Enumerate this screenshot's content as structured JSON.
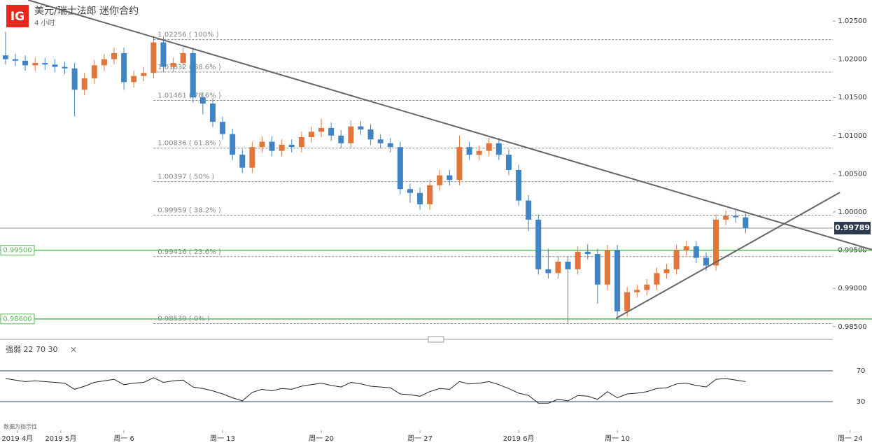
{
  "header": {
    "logo": "IG",
    "title": "美元/瑞士法郎 迷你合约",
    "interval": "4 小时"
  },
  "footer_note": "数据为指示性",
  "chart_data": [
    {
      "type": "candlestick",
      "x": [
        -6,
        -5.5,
        -5,
        -4.5,
        -4,
        -3.5,
        -3,
        -2.5,
        -2,
        -1.5,
        -1,
        -0.5,
        0,
        0.5,
        1,
        1.5,
        2,
        2.5,
        3,
        3.5,
        4,
        4.5,
        5,
        5.5,
        6,
        6.5,
        7,
        7.5,
        8,
        8.5,
        9,
        9.5,
        10,
        10.5,
        11,
        11.5,
        12,
        12.5,
        13,
        13.5,
        14,
        14.5,
        15,
        15.5,
        16,
        16.5,
        17,
        17.5,
        18,
        18.5,
        19,
        19.5,
        20,
        20.5,
        21,
        21.5,
        22,
        22.5,
        23,
        23.5,
        24,
        24.5,
        25,
        25.5,
        26,
        26.5,
        27,
        27.5,
        28,
        28.5,
        29,
        29.5,
        30,
        30.5,
        31,
        31.5
      ],
      "open": [
        1.0205,
        1.02,
        1.0198,
        1.0192,
        1.0195,
        1.0193,
        1.019,
        1.0188,
        1.016,
        1.0175,
        1.0192,
        1.02,
        1.0208,
        1.017,
        1.0178,
        1.0182,
        1.0222,
        1.019,
        1.0195,
        1.0208,
        1.015,
        1.0142,
        1.0118,
        1.0102,
        1.0075,
        1.0058,
        1.0085,
        1.0092,
        1.008,
        1.0088,
        1.0085,
        1.0098,
        1.0105,
        1.011,
        1.01,
        1.009,
        1.0112,
        1.0108,
        1.0095,
        1.009,
        1.0085,
        1.003,
        1.0025,
        1.001,
        1.0035,
        1.0048,
        1.0042,
        1.0085,
        1.0075,
        1.008,
        1.009,
        1.0075,
        1.0055,
        1.0015,
        0.999,
        0.9925,
        0.992,
        0.9935,
        0.9925,
        0.9948,
        0.9945,
        0.9905,
        0.995,
        0.987,
        0.9895,
        0.9898,
        0.9905,
        0.992,
        0.9925,
        0.995,
        0.9955,
        0.994,
        0.993,
        0.999,
        0.9995,
        0.9993
      ],
      "high": [
        1.0236,
        1.0207,
        1.0205,
        1.0202,
        1.0202,
        1.02,
        1.0197,
        1.0195,
        1.0182,
        1.0199,
        1.0207,
        1.0215,
        1.0215,
        1.0185,
        1.019,
        1.023,
        1.0229,
        1.0202,
        1.0215,
        1.0215,
        1.0157,
        1.0149,
        1.0125,
        1.0109,
        1.0082,
        1.0092,
        1.0099,
        1.0099,
        1.0095,
        1.0095,
        1.0105,
        1.0112,
        1.0122,
        1.0117,
        1.0107,
        1.012,
        1.0119,
        1.0115,
        1.0102,
        1.0097,
        1.0092,
        1.0037,
        1.0032,
        1.0042,
        1.0055,
        1.0055,
        1.01,
        1.0092,
        1.0087,
        1.0097,
        1.0097,
        1.0082,
        1.0062,
        1.0022,
        0.9997,
        0.9952,
        0.9942,
        0.9942,
        0.9955,
        0.9958,
        0.9952,
        0.9957,
        0.9957,
        0.9902,
        0.9905,
        0.9912,
        0.9927,
        0.9932,
        0.9957,
        0.9962,
        0.9962,
        0.9947,
        0.9997,
        1.0002,
        1.0002,
        0.9998
      ],
      "low": [
        1.0193,
        1.0191,
        1.0185,
        1.0185,
        1.0186,
        1.0183,
        1.0181,
        1.0125,
        1.0153,
        1.0168,
        1.0185,
        1.0193,
        1.016,
        1.0163,
        1.0171,
        1.0175,
        1.0183,
        1.0183,
        1.0188,
        1.0143,
        1.0128,
        1.0111,
        1.0095,
        1.0068,
        1.0051,
        1.0051,
        1.0078,
        1.0073,
        1.0073,
        1.0078,
        1.0078,
        1.0091,
        1.0098,
        1.0093,
        1.0083,
        1.0083,
        1.0101,
        1.0088,
        1.0083,
        1.0078,
        1.0023,
        1.0012,
        1.0003,
        1.0003,
        1.0028,
        1.0035,
        1.0035,
        1.0068,
        1.0068,
        1.0073,
        1.0068,
        1.0048,
        1.0008,
        0.9975,
        0.9918,
        0.9913,
        0.9913,
        0.9855,
        0.9918,
        0.9938,
        0.988,
        0.9898,
        0.9859,
        0.9863,
        0.9888,
        0.9891,
        0.9898,
        0.9913,
        0.9918,
        0.9943,
        0.9933,
        0.9923,
        0.9923,
        0.9983,
        0.9986,
        0.9972
      ],
      "close": [
        1.02,
        1.0198,
        1.0192,
        1.0195,
        1.0193,
        1.019,
        1.0188,
        1.016,
        1.0175,
        1.0192,
        1.02,
        1.0208,
        1.017,
        1.0178,
        1.0182,
        1.0222,
        1.019,
        1.0195,
        1.0208,
        1.015,
        1.0142,
        1.0118,
        1.0102,
        1.0075,
        1.0058,
        1.0085,
        1.0092,
        1.008,
        1.0088,
        1.0085,
        1.0098,
        1.0105,
        1.011,
        1.01,
        1.009,
        1.0112,
        1.0108,
        1.0095,
        1.009,
        1.0085,
        1.003,
        1.0025,
        1.001,
        1.0035,
        1.0048,
        1.0042,
        1.0085,
        1.0075,
        1.008,
        1.009,
        1.0075,
        1.0055,
        1.0015,
        0.999,
        0.9925,
        0.992,
        0.9935,
        0.9925,
        0.9948,
        0.9945,
        0.9905,
        0.995,
        0.987,
        0.9895,
        0.9898,
        0.9905,
        0.992,
        0.9925,
        0.995,
        0.9955,
        0.994,
        0.993,
        0.999,
        0.9995,
        0.9993,
        0.9979
      ],
      "up_color": "#e0763a",
      "down_color": "#3f85c6",
      "xlim": [
        -6.28,
        35.92
      ],
      "ylim": [
        0.98333,
        1.02775
      ],
      "yticks": [
        {
          "value": 1.025,
          "label": "1.02500"
        },
        {
          "value": 1.02,
          "label": "1.02000"
        },
        {
          "value": 1.015,
          "label": "1.01500"
        },
        {
          "value": 1.01,
          "label": "1.01000"
        },
        {
          "value": 1.005,
          "label": "1.00500"
        },
        {
          "value": 1,
          "label": "1.00000"
        },
        {
          "value": 0.995,
          "label": "0.99500"
        },
        {
          "value": 0.99,
          "label": "0.99000"
        },
        {
          "value": 0.985,
          "label": "0.98500"
        }
      ],
      "xticks": [
        {
          "value": -5.4,
          "label": "2019 4月"
        },
        {
          "value": -3.2,
          "label": "2019 5月"
        },
        {
          "value": 0,
          "label": "周一 6"
        },
        {
          "value": 5,
          "label": "周一 13"
        },
        {
          "value": 10,
          "label": "周一 20"
        },
        {
          "value": 15,
          "label": "周一 27"
        },
        {
          "value": 20,
          "label": "2019 6月"
        },
        {
          "value": 25,
          "label": "周一 10"
        },
        {
          "value": 36.8,
          "label": "周一 24"
        }
      ],
      "fib_levels": [
        {
          "value": 1.02256,
          "label": "1.02256 ( 100% )"
        },
        {
          "value": 1.01832,
          "label": "1.01832 ( 88.6% )"
        },
        {
          "value": 1.01461,
          "label": "1.01461 ( 78.6% )"
        },
        {
          "value": 1.00836,
          "label": "1.00836 ( 61.8% )"
        },
        {
          "value": 1.00397,
          "label": "1.00397 ( 50% )"
        },
        {
          "value": 0.99959,
          "label": "0.99959 ( 38.2% )"
        },
        {
          "value": 0.99416,
          "label": "0.99416 ( 23.6% )"
        },
        {
          "value": 0.98539,
          "label": "0.98539 ( 0% )"
        }
      ],
      "fib_start": 1.5,
      "levels": [
        {
          "value": 0.995,
          "label": "0.99500",
          "color": "#5cb85c"
        },
        {
          "value": 0.986,
          "label": "0.98600",
          "color": "#5cb85c"
        }
      ],
      "last_price": {
        "value": 0.99789,
        "label": "0.99789"
      },
      "trendlines": [
        {
          "x": [
            -4.86,
            37.91
          ],
          "y": [
            1.02775,
            0.99506
          ]
        },
        {
          "x": [
            24.93,
            36.28
          ],
          "y": [
            0.98608,
            1.00256
          ]
        }
      ]
    },
    {
      "type": "line",
      "label": "强弱 22 70 30",
      "close_icon": "×",
      "color": "#222222",
      "ref_color": "#27406e",
      "x": [
        -6,
        -5.5,
        -5,
        -4.5,
        -4,
        -3.5,
        -3,
        -2.5,
        -2,
        -1.5,
        -1,
        -0.5,
        0,
        0.5,
        1,
        1.5,
        2,
        2.5,
        3,
        3.5,
        4,
        4.5,
        5,
        5.5,
        6,
        6.5,
        7,
        7.5,
        8,
        8.5,
        9,
        9.5,
        10,
        10.5,
        11,
        11.5,
        12,
        12.5,
        13,
        13.5,
        14,
        14.5,
        15,
        15.5,
        16,
        16.5,
        17,
        17.5,
        18,
        18.5,
        19,
        19.5,
        20,
        20.5,
        21,
        21.5,
        22,
        22.5,
        23,
        23.5,
        24,
        24.5,
        25,
        25.5,
        26,
        26.5,
        27,
        27.5,
        28,
        28.5,
        29,
        29.5,
        30,
        30.5,
        31,
        31.5
      ],
      "values": [
        60,
        58,
        56,
        57,
        56,
        55,
        54,
        46,
        50,
        55,
        57,
        59,
        52,
        54,
        55,
        61,
        55,
        57,
        58,
        49,
        47,
        44,
        40,
        35,
        31,
        42,
        46,
        44,
        47,
        46,
        50,
        52,
        54,
        51,
        49,
        55,
        53,
        50,
        49,
        48,
        40,
        39,
        37,
        43,
        47,
        46,
        56,
        53,
        54,
        56,
        52,
        47,
        41,
        38,
        28,
        28,
        33,
        31,
        38,
        37,
        33,
        43,
        35,
        40,
        41,
        43,
        47,
        48,
        53,
        54,
        51,
        49,
        59,
        60,
        58,
        56
      ],
      "ylim": [
        20,
        80
      ],
      "yticks": [
        70,
        30
      ]
    }
  ]
}
